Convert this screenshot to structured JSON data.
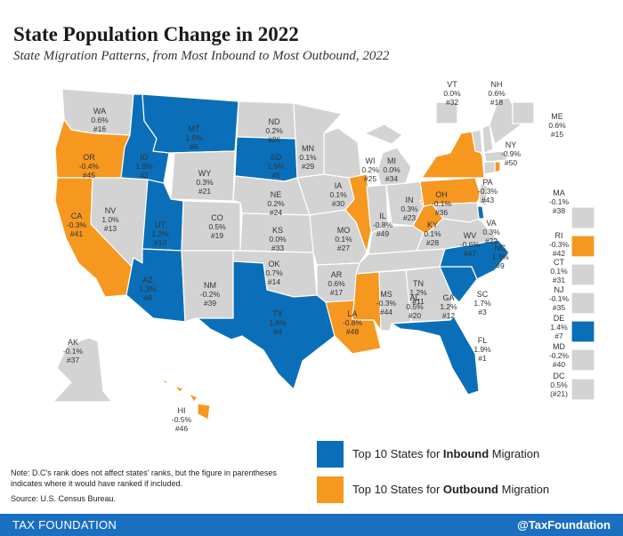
{
  "title": "State Population Change in 2022",
  "subtitle": "State Migration Patterns, from Most Inbound to Most Outbound, 2022",
  "colors": {
    "inbound": "#0a6fb8",
    "outbound": "#f6971f",
    "other": "#d3d3d3"
  },
  "states": [
    {
      "abbr": "WA",
      "change": "0.6%",
      "rank": "#16",
      "category": "other"
    },
    {
      "abbr": "OR",
      "change": "-0.4%",
      "rank": "#45",
      "category": "outbound"
    },
    {
      "abbr": "CA",
      "change": "-0.3%",
      "rank": "#41",
      "category": "outbound"
    },
    {
      "abbr": "ID",
      "change": "1.8%",
      "rank": "#2",
      "category": "inbound"
    },
    {
      "abbr": "NV",
      "change": "1.0%",
      "rank": "#13",
      "category": "other"
    },
    {
      "abbr": "MT",
      "change": "1.5%",
      "rank": "#6",
      "category": "inbound"
    },
    {
      "abbr": "WY",
      "change": "0.3%",
      "rank": "#21",
      "category": "other"
    },
    {
      "abbr": "UT",
      "change": "1.2%",
      "rank": "#10",
      "category": "inbound"
    },
    {
      "abbr": "AZ",
      "change": "1.3%",
      "rank": "#8",
      "category": "inbound"
    },
    {
      "abbr": "CO",
      "change": "0.5%",
      "rank": "#19",
      "category": "other"
    },
    {
      "abbr": "NM",
      "change": "-0.2%",
      "rank": "#39",
      "category": "other"
    },
    {
      "abbr": "ND",
      "change": "0.2%",
      "rank": "#26",
      "category": "other"
    },
    {
      "abbr": "SD",
      "change": "1.5%",
      "rank": "#5",
      "category": "inbound"
    },
    {
      "abbr": "NE",
      "change": "0.2%",
      "rank": "#24",
      "category": "other"
    },
    {
      "abbr": "KS",
      "change": "0.0%",
      "rank": "#33",
      "category": "other"
    },
    {
      "abbr": "OK",
      "change": "0.7%",
      "rank": "#14",
      "category": "other"
    },
    {
      "abbr": "TX",
      "change": "1.6%",
      "rank": "#4",
      "category": "inbound"
    },
    {
      "abbr": "MN",
      "change": "0.1%",
      "rank": "#29",
      "category": "other"
    },
    {
      "abbr": "IA",
      "change": "0.1%",
      "rank": "#30",
      "category": "other"
    },
    {
      "abbr": "MO",
      "change": "0.1%",
      "rank": "#27",
      "category": "other"
    },
    {
      "abbr": "AR",
      "change": "0.6%",
      "rank": "#17",
      "category": "other"
    },
    {
      "abbr": "LA",
      "change": "-0.8%",
      "rank": "#48",
      "category": "outbound"
    },
    {
      "abbr": "WI",
      "change": "0.2%",
      "rank": "#25",
      "category": "other"
    },
    {
      "abbr": "IL",
      "change": "-0.8%",
      "rank": "#49",
      "category": "outbound"
    },
    {
      "abbr": "MI",
      "change": "0.0%",
      "rank": "#34",
      "category": "other"
    },
    {
      "abbr": "IN",
      "change": "0.3%",
      "rank": "#23",
      "category": "other"
    },
    {
      "abbr": "OH",
      "change": "-0.1%",
      "rank": "#36",
      "category": "other"
    },
    {
      "abbr": "KY",
      "change": "0.1%",
      "rank": "#28",
      "category": "other"
    },
    {
      "abbr": "TN",
      "change": "1.2%",
      "rank": "#11",
      "category": "other"
    },
    {
      "abbr": "MS",
      "change": "-0.3%",
      "rank": "#44",
      "category": "outbound"
    },
    {
      "abbr": "AL",
      "change": "0.5%",
      "rank": "#20",
      "category": "other"
    },
    {
      "abbr": "GA",
      "change": "1.2%",
      "rank": "#12",
      "category": "other"
    },
    {
      "abbr": "FL",
      "change": "1.9%",
      "rank": "#1",
      "category": "inbound"
    },
    {
      "abbr": "SC",
      "change": "1.7%",
      "rank": "#3",
      "category": "inbound"
    },
    {
      "abbr": "NC",
      "change": "1.3%",
      "rank": "#9",
      "category": "inbound"
    },
    {
      "abbr": "VA",
      "change": "0.3%",
      "rank": "#22",
      "category": "other"
    },
    {
      "abbr": "WV",
      "change": "-0.6%",
      "rank": "#47",
      "category": "outbound"
    },
    {
      "abbr": "PA",
      "change": "-0.3%",
      "rank": "#43",
      "category": "outbound"
    },
    {
      "abbr": "NY",
      "change": "-0.9%",
      "rank": "#50",
      "category": "outbound"
    },
    {
      "abbr": "VT",
      "change": "0.0%",
      "rank": "#32",
      "category": "other"
    },
    {
      "abbr": "NH",
      "change": "0.6%",
      "rank": "#18",
      "category": "other"
    },
    {
      "abbr": "ME",
      "change": "0.6%",
      "rank": "#15",
      "category": "other"
    },
    {
      "abbr": "MA",
      "change": "-0.1%",
      "rank": "#38",
      "category": "other"
    },
    {
      "abbr": "RI",
      "change": "-0.3%",
      "rank": "#42",
      "category": "outbound"
    },
    {
      "abbr": "CT",
      "change": "0.1%",
      "rank": "#31",
      "category": "other"
    },
    {
      "abbr": "NJ",
      "change": "-0.1%",
      "rank": "#35",
      "category": "other"
    },
    {
      "abbr": "DE",
      "change": "1.4%",
      "rank": "#7",
      "category": "inbound"
    },
    {
      "abbr": "MD",
      "change": "-0.2%",
      "rank": "#40",
      "category": "other"
    },
    {
      "abbr": "DC",
      "change": "0.5%",
      "rank": "(#21)",
      "category": "other"
    },
    {
      "abbr": "AK",
      "change": "-0.1%",
      "rank": "#37",
      "category": "other"
    },
    {
      "abbr": "HI",
      "change": "-0.5%",
      "rank": "#46",
      "category": "outbound"
    }
  ],
  "legend": {
    "inbound": {
      "prefix": "Top 10 States for ",
      "bold": "Inbound",
      "suffix": " Migration"
    },
    "outbound": {
      "prefix": "Top 10 States for ",
      "bold": "Outbound",
      "suffix": " Migration"
    }
  },
  "note": "Note: D.C's rank does not affect states' ranks, but the figure in parentheses indicates where it would have ranked if included.",
  "source": "Source: U.S. Census Bureau.",
  "footer": {
    "brand": "TAX FOUNDATION",
    "handle": "@TaxFoundation"
  }
}
